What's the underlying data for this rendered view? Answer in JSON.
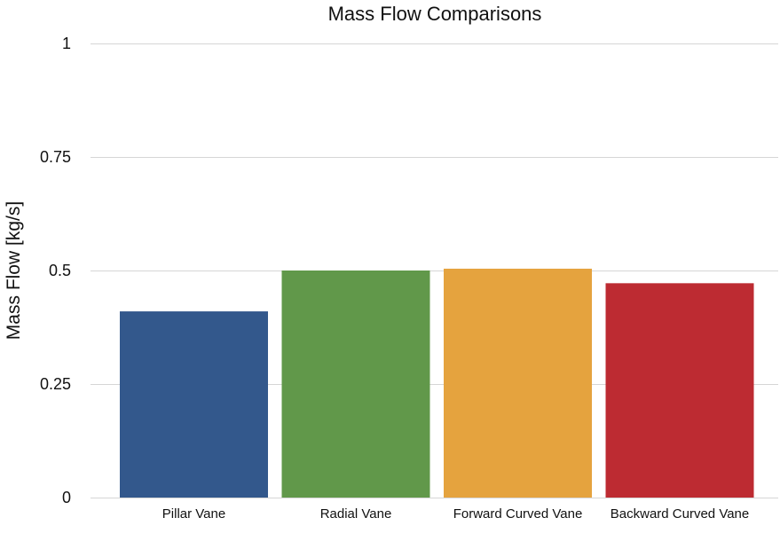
{
  "chart_data": {
    "type": "bar",
    "title": "Mass Flow Comparisons",
    "xlabel": "",
    "ylabel": "Mass Flow [kg/s]",
    "categories": [
      "Pillar Vane",
      "Radial Vane",
      "Forward Curved Vane",
      "Backward Curved Vane"
    ],
    "values": [
      0.41,
      0.5,
      0.504,
      0.472
    ],
    "colors": [
      "#33588c",
      "#61984a",
      "#e5a33e",
      "#bd2b32"
    ],
    "ylim": [
      0,
      1
    ],
    "yticks": [
      0,
      0.25,
      0.5,
      0.75,
      1
    ],
    "ytick_labels": [
      "0",
      "0.25",
      "0.5",
      "0.75",
      "1"
    ],
    "grid": true,
    "legend": "none"
  }
}
